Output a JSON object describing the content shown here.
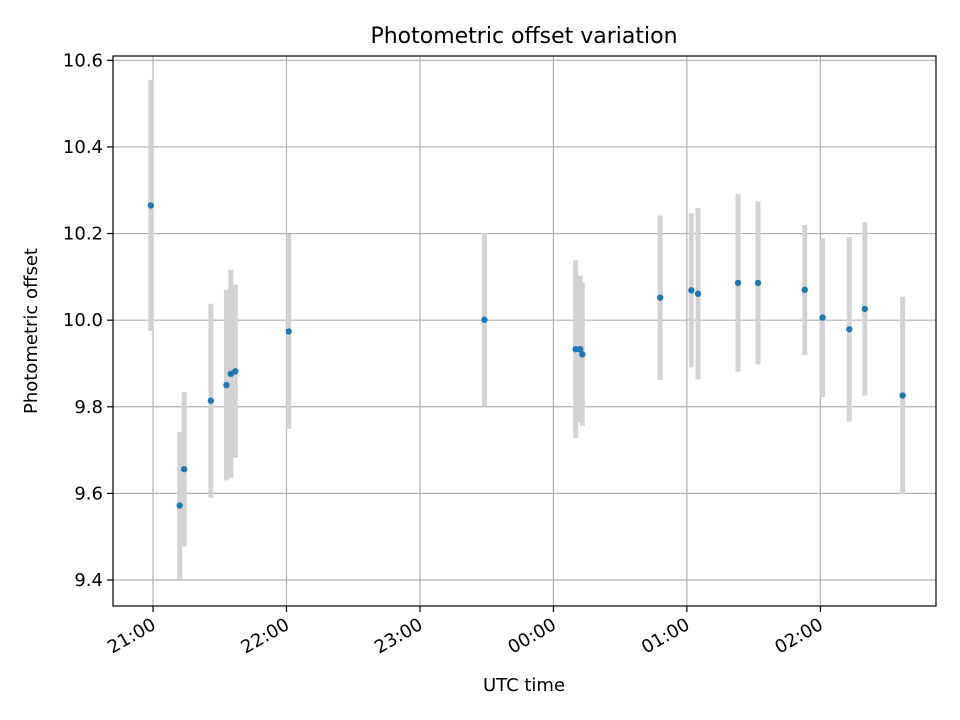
{
  "chart_data": {
    "type": "scatter",
    "title": "Photometric offset variation",
    "xlabel": "UTC time",
    "ylabel": "Photometric offset",
    "x_axis": {
      "kind": "time",
      "range": [
        "20:42",
        "02:52"
      ],
      "ticks": [
        "21:00",
        "22:00",
        "23:00",
        "00:00",
        "01:00",
        "02:00"
      ]
    },
    "y_axis": {
      "range": [
        9.34,
        10.61
      ],
      "ticks": [
        "9.4",
        "9.6",
        "9.8",
        "10.0",
        "10.2",
        "10.4",
        "10.6"
      ]
    },
    "grid": true,
    "colors": {
      "point": "#1f77b4",
      "errorbar": "#d3d3d3",
      "grid": "#b0b0b0"
    },
    "points": [
      {
        "time": "20:59",
        "y": 10.265,
        "err": 0.29
      },
      {
        "time": "21:12",
        "y": 9.572,
        "err": 0.17
      },
      {
        "time": "21:14",
        "y": 9.656,
        "err": 0.178
      },
      {
        "time": "21:26",
        "y": 9.814,
        "err": 0.224
      },
      {
        "time": "21:33",
        "y": 9.85,
        "err": 0.22
      },
      {
        "time": "21:35",
        "y": 9.876,
        "err": 0.24
      },
      {
        "time": "21:37",
        "y": 9.882,
        "err": 0.2
      },
      {
        "time": "22:01",
        "y": 9.974,
        "err": 0.225
      },
      {
        "time": "23:29",
        "y": 10.001,
        "err": 0.2
      },
      {
        "time": "00:10",
        "y": 9.933,
        "err": 0.205
      },
      {
        "time": "00:12",
        "y": 9.933,
        "err": 0.17
      },
      {
        "time": "00:13",
        "y": 9.921,
        "err": 0.165
      },
      {
        "time": "00:48",
        "y": 10.052,
        "err": 0.19
      },
      {
        "time": "01:02",
        "y": 10.069,
        "err": 0.178
      },
      {
        "time": "01:05",
        "y": 10.061,
        "err": 0.198
      },
      {
        "time": "01:23",
        "y": 10.086,
        "err": 0.205
      },
      {
        "time": "01:32",
        "y": 10.086,
        "err": 0.188
      },
      {
        "time": "01:53",
        "y": 10.07,
        "err": 0.15
      },
      {
        "time": "02:01",
        "y": 10.006,
        "err": 0.183
      },
      {
        "time": "02:13",
        "y": 9.979,
        "err": 0.213
      },
      {
        "time": "02:20",
        "y": 10.026,
        "err": 0.2
      },
      {
        "time": "02:37",
        "y": 9.826,
        "err": 0.228
      }
    ]
  }
}
